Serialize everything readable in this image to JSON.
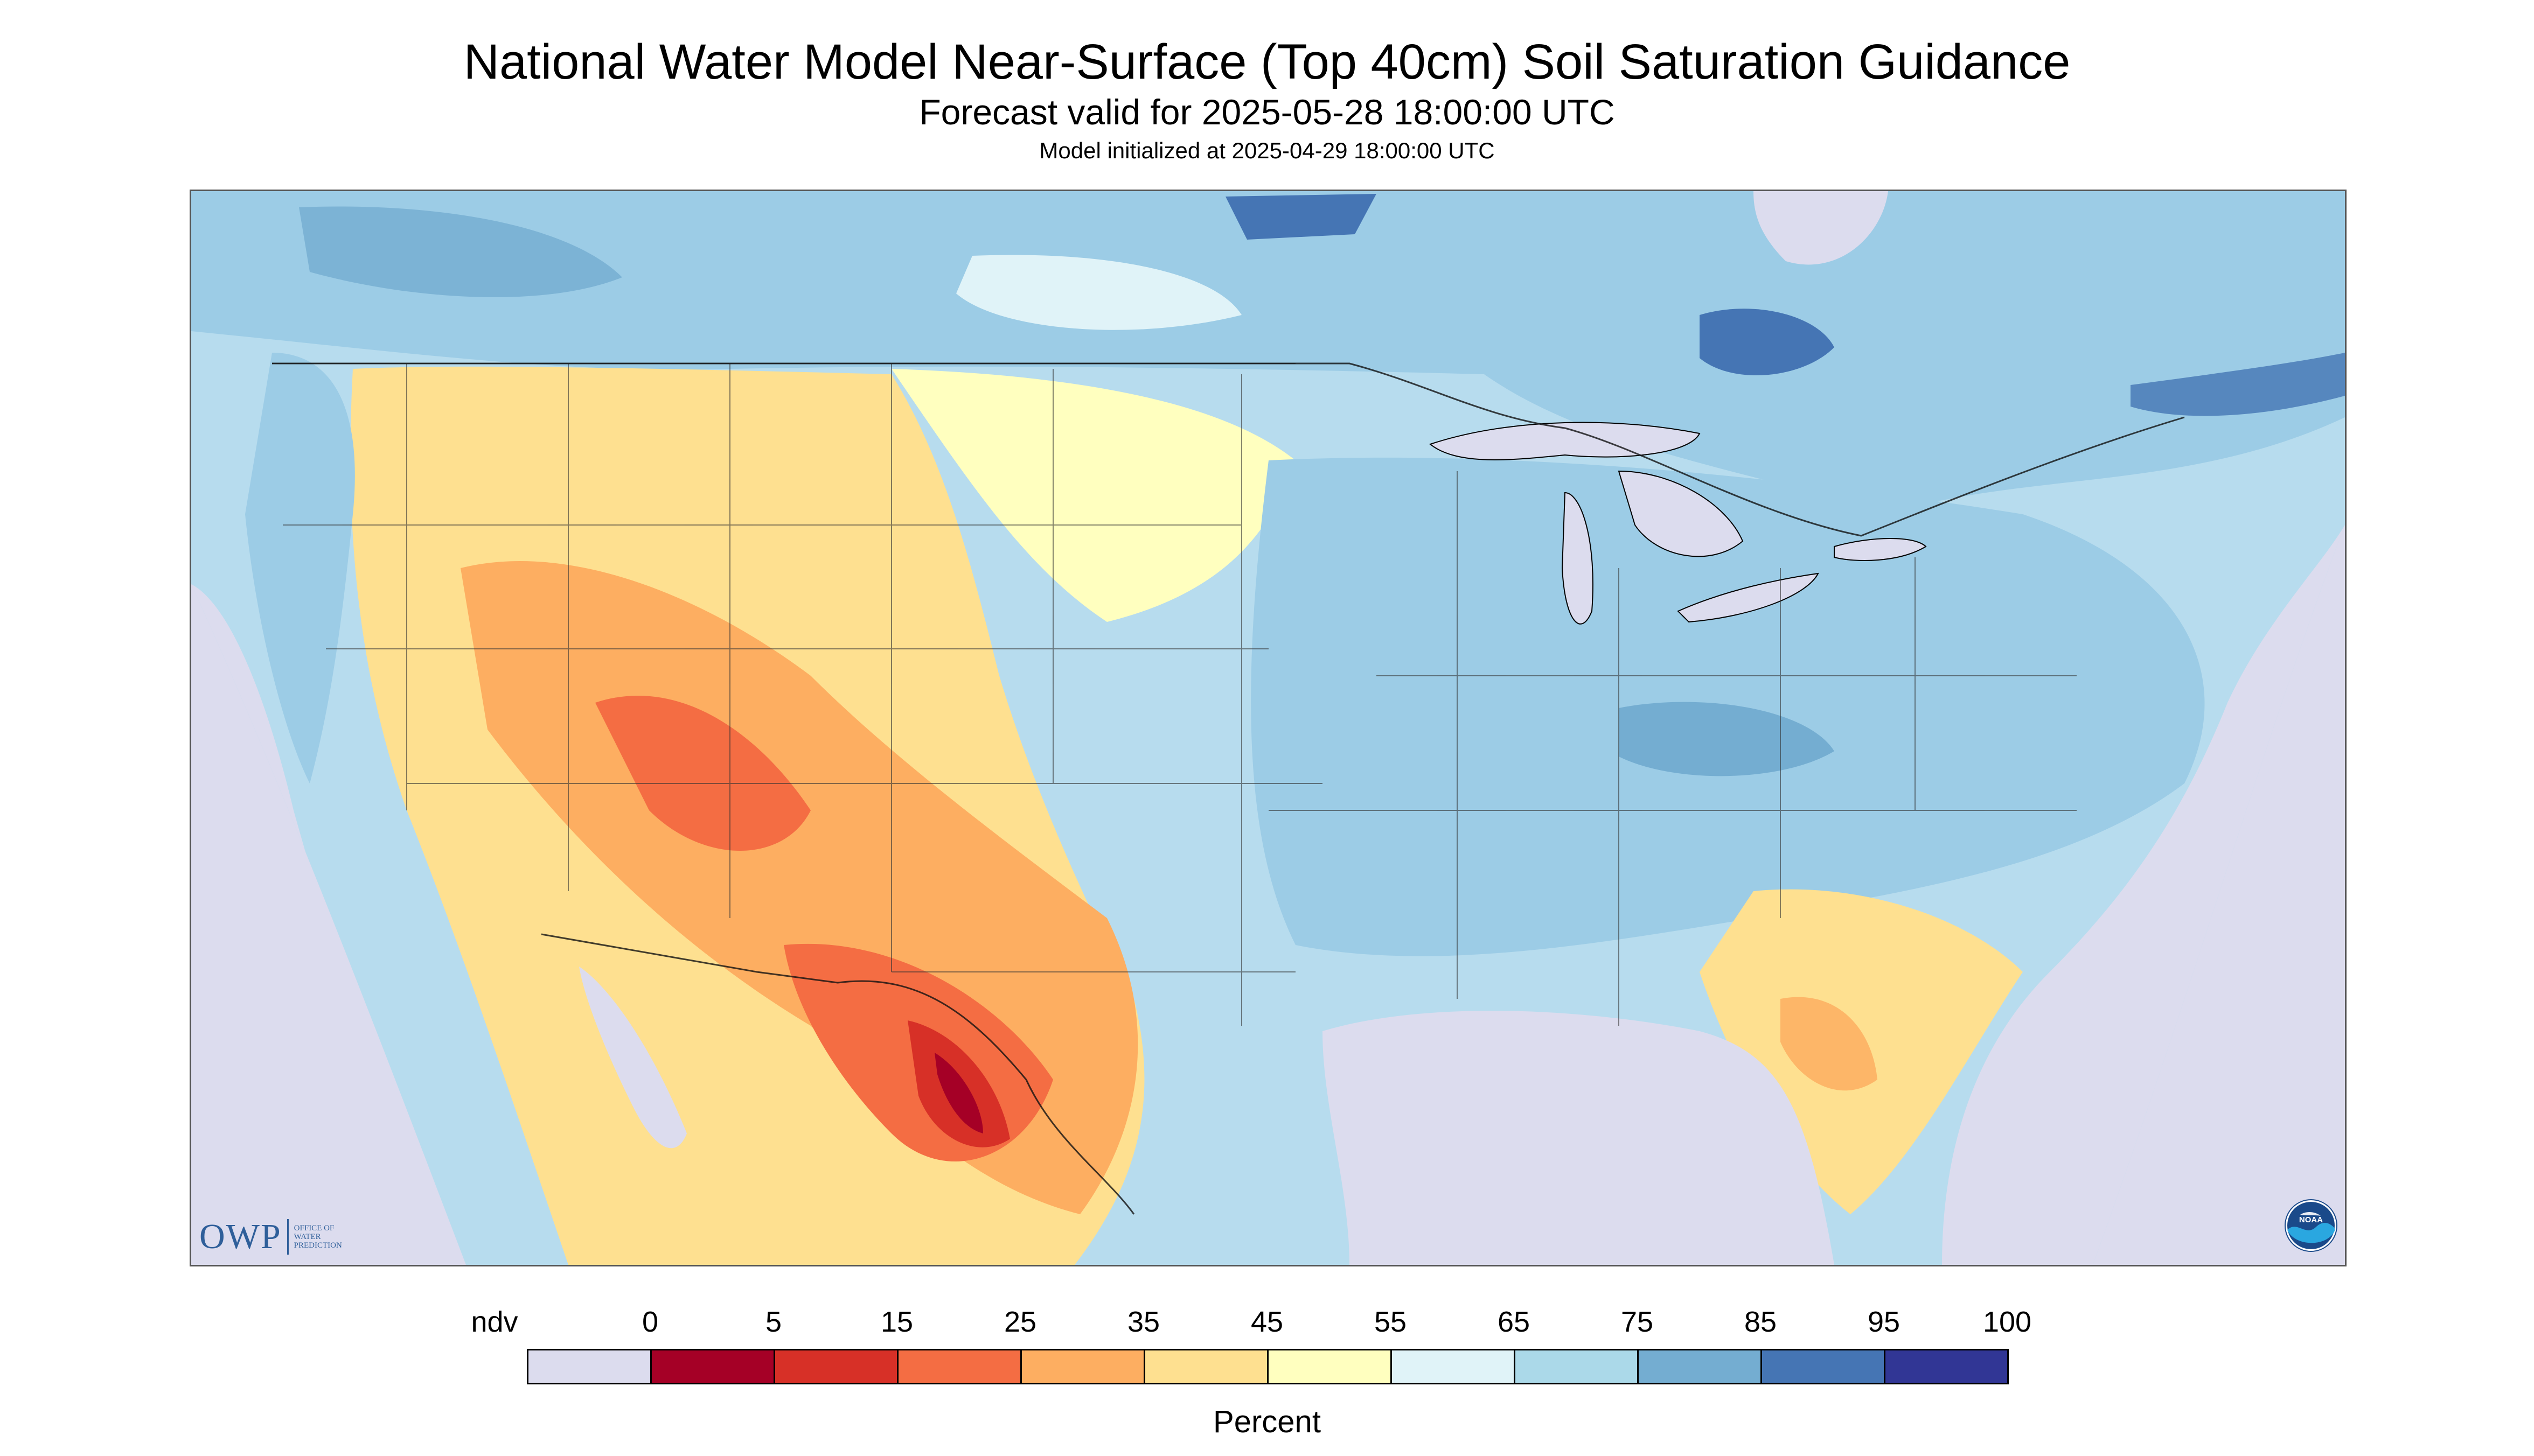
{
  "title": "National Water Model Near-Surface (Top 40cm) Soil Saturation Guidance",
  "subtitle": "Forecast valid for 2025-05-28 18:00:00 UTC",
  "init_text": "Model initialized at 2025-04-29 18:00:00 UTC",
  "logos": {
    "owp_letters": "OWP",
    "owp_words": "OFFICE OF\nWATER\nPREDICTION",
    "noaa_text": "NOAA"
  },
  "legend": {
    "unit": "Percent",
    "nodata_label": "ndv",
    "labels": [
      "0",
      "5",
      "15",
      "25",
      "35",
      "45",
      "55",
      "65",
      "75",
      "85",
      "95",
      "100"
    ],
    "bins": [
      {
        "color": "#dcdcee"
      },
      {
        "color": "#a50026"
      },
      {
        "color": "#d73027"
      },
      {
        "color": "#f46d43"
      },
      {
        "color": "#fdae61"
      },
      {
        "color": "#fee090"
      },
      {
        "color": "#ffffbf"
      },
      {
        "color": "#e0f3f8"
      },
      {
        "color": "#abd9e9"
      },
      {
        "color": "#74add1"
      },
      {
        "color": "#4575b4"
      },
      {
        "color": "#313695"
      }
    ]
  },
  "map": {
    "background_color": "#dcdcee",
    "land_base_color": "#b7dcee",
    "water_color": "#dcdcee"
  }
}
